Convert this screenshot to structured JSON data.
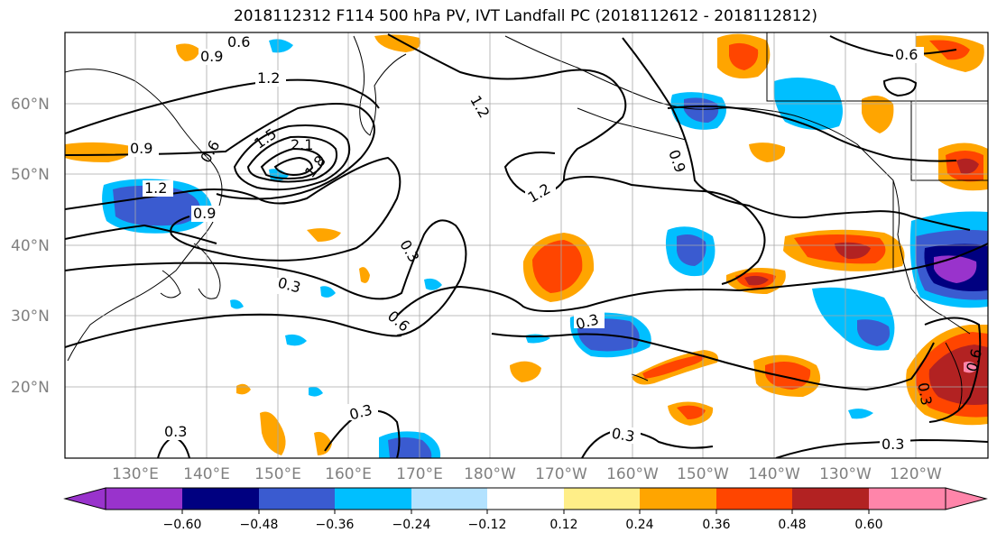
{
  "title": "2018112312 F114 500 hPa PV, IVT Landfall PC (2018112612 - 2018112812)",
  "map": {
    "lat_labels": [
      "60°N",
      "50°N",
      "40°N",
      "30°N",
      "20°N"
    ],
    "lon_labels": [
      "130°E",
      "140°E",
      "150°E",
      "160°E",
      "170°E",
      "180°W",
      "170°W",
      "160°W",
      "150°W",
      "140°W",
      "130°W",
      "120°W"
    ],
    "contour_labels": [
      "0.6",
      "0.9",
      "1.2",
      "1.2",
      "0.9",
      "0.6",
      "1.5",
      "2.1",
      "1.8",
      "1.2",
      "0.9",
      "1.2",
      "0.9",
      "0.6",
      "0.3",
      "0.3",
      "0.6",
      "0.3",
      "0.3",
      "0.3",
      "0.3",
      "0.3",
      "0.3",
      "0.6",
      "0.3"
    ],
    "fill_colors": {
      "n060": "#9933cc",
      "n048": "#000080",
      "n036": "#3a5bd0",
      "n024": "#00bfff",
      "n012": "#b3e2ff",
      "p012": "#ffee88",
      "p024": "#ffa500",
      "p036": "#ff4500",
      "p048": "#b22222",
      "p060": "#ff85aa"
    }
  },
  "colorbar": {
    "tick_labels": [
      "−0.60",
      "−0.48",
      "−0.36",
      "−0.24",
      "−0.12",
      "0.12",
      "0.24",
      "0.36",
      "0.48",
      "0.60"
    ],
    "colors": [
      "#9933cc",
      "#000080",
      "#3a5bd0",
      "#00bfff",
      "#b3e2ff",
      "#ffffff",
      "#ffee88",
      "#ffa500",
      "#ff4500",
      "#b22222",
      "#ff85aa"
    ]
  }
}
